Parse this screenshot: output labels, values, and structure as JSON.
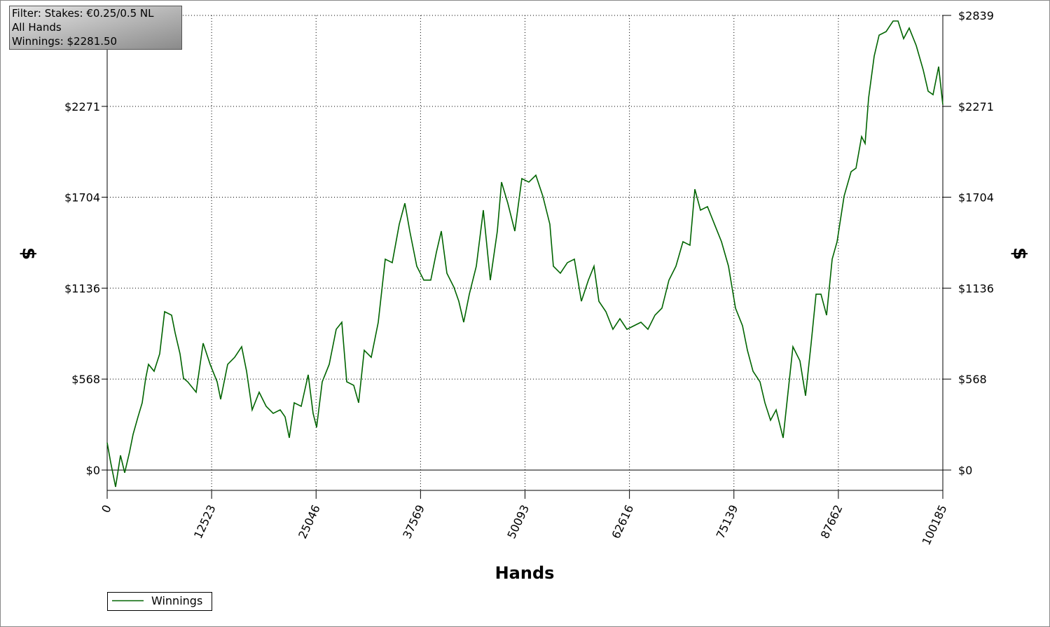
{
  "info_box": {
    "lines": [
      "Filter: Stakes: €0.25/0.5 NL",
      "All Hands",
      "Winnings: $2281.50"
    ]
  },
  "chart_data": {
    "type": "line",
    "x_label": "Hands",
    "y_label": "$",
    "y2_label": "$",
    "xlim": [
      0,
      100185
    ],
    "ylim": [
      -127,
      2839
    ],
    "xticks": [
      0,
      12523,
      25046,
      37569,
      50093,
      62616,
      75139,
      87662,
      100185
    ],
    "yticks": [
      {
        "value": 0,
        "label": "$0"
      },
      {
        "value": 568,
        "label": "$568"
      },
      {
        "value": 1136,
        "label": "$1136"
      },
      {
        "value": 1704,
        "label": "$1704"
      },
      {
        "value": 2271,
        "label": "$2271"
      },
      {
        "value": 2839,
        "label": "$2839"
      }
    ],
    "grid": true,
    "legend": "bottom-left",
    "x": [
      0,
      420,
      1008,
      1596,
      2100,
      2687,
      3107,
      3695,
      4199,
      4619,
      4955,
      5627,
      6298,
      6886,
      7726,
      8146,
      8734,
      9154,
      9657,
      10665,
      11505,
      12345,
      13184,
      13604,
      14444,
      15284,
      16124,
      16712,
      17383,
      18223,
      19063,
      19903,
      20742,
      21330,
      21834,
      22422,
      23262,
      24101,
      24689,
      25109,
      25781,
      26621,
      27460,
      28132,
      28720,
      29560,
      30148,
      30819,
      31659,
      32499,
      33339,
      34178,
      35018,
      35690,
      36278,
      37118,
      37957,
      38797,
      39469,
      40057,
      40729,
      41568,
      42156,
      42744,
      43416,
      44256,
      45095,
      45935,
      46775,
      47279,
      48033,
      48873,
      49713,
      50553,
      51393,
      52233,
      53073,
      53493,
      54333,
      55173,
      56012,
      56852,
      57692,
      58364,
      58952,
      59792,
      60632,
      61471,
      62311,
      63151,
      63991,
      64831,
      65671,
      66510,
      67350,
      68190,
      69030,
      69870,
      70458,
      71130,
      71970,
      72809,
      73649,
      74489,
      75329,
      76169,
      76757,
      77429,
      78268,
      78856,
      79528,
      80200,
      81040,
      81628,
      82215,
      83055,
      83727,
      84399,
      84987,
      85575,
      86247,
      86919,
      87507,
      88347,
      89186,
      89774,
      90446,
      90866,
      91286,
      91958,
      92546,
      93386,
      94226,
      94814,
      95483,
      96155,
      96995,
      97835,
      98423,
      99011,
      99683,
      100185
    ],
    "series": [
      {
        "name": "Winnings",
        "color": "#006400",
        "values": [
          171,
          48,
          -105,
          92,
          -17,
          114,
          223,
          332,
          420,
          573,
          660,
          617,
          726,
          989,
          967,
          857,
          726,
          573,
          551,
          486,
          792,
          660,
          551,
          442,
          660,
          704,
          770,
          617,
          376,
          486,
          398,
          354,
          376,
          332,
          201,
          420,
          398,
          595,
          354,
          267,
          551,
          660,
          879,
          923,
          551,
          529,
          420,
          748,
          704,
          923,
          1317,
          1295,
          1535,
          1666,
          1492,
          1273,
          1186,
          1186,
          1360,
          1492,
          1229,
          1142,
          1054,
          923,
          1098,
          1273,
          1623,
          1186,
          1492,
          1798,
          1666,
          1492,
          1820,
          1798,
          1841,
          1710,
          1535,
          1273,
          1229,
          1295,
          1317,
          1054,
          1186,
          1273,
          1054,
          989,
          879,
          945,
          879,
          901,
          923,
          879,
          967,
          1011,
          1186,
          1273,
          1426,
          1404,
          1754,
          1623,
          1645,
          1535,
          1426,
          1273,
          1011,
          901,
          748,
          617,
          551,
          420,
          311,
          376,
          201,
          486,
          770,
          682,
          464,
          792,
          1098,
          1098,
          967,
          1317,
          1426,
          1710,
          1863,
          1885,
          2082,
          2039,
          2323,
          2585,
          2716,
          2738,
          2804,
          2804,
          2694,
          2760,
          2651,
          2498,
          2366,
          2344,
          2519,
          2281.5
        ]
      }
    ]
  }
}
